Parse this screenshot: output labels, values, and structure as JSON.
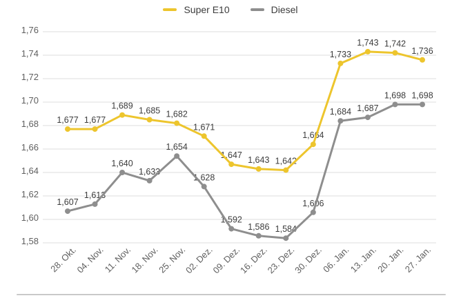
{
  "chart_data": {
    "type": "line",
    "x": [
      "28. Okt.",
      "04. Nov.",
      "11. Nov.",
      "18. Nov.",
      "25. Nov.",
      "02. Dez.",
      "09. Dez.",
      "16. Dez.",
      "23. Dez.",
      "30. Dez.",
      "06. Jan.",
      "13. Jan.",
      "20. Jan.",
      "27. Jan."
    ],
    "series": [
      {
        "name": "Super E10",
        "color": "#edc52d",
        "values": [
          1.677,
          1.677,
          1.689,
          1.685,
          1.682,
          1.671,
          1.647,
          1.643,
          1.642,
          1.664,
          1.733,
          1.743,
          1.742,
          1.736
        ],
        "labels": [
          "1,677",
          "1,677",
          "1,689",
          "1,685",
          "1,682",
          "1,671",
          "1,647",
          "1,643",
          "1,642",
          "1,664",
          "1,733",
          "1,743",
          "1,742",
          "1,736"
        ]
      },
      {
        "name": "Diesel",
        "color": "#8e8e8e",
        "values": [
          1.607,
          1.613,
          1.64,
          1.633,
          1.654,
          1.628,
          1.592,
          1.586,
          1.584,
          1.606,
          1.684,
          1.687,
          1.698,
          1.698
        ],
        "labels": [
          "1,607",
          "1,613",
          "1,640",
          "1,633",
          "1,654",
          "1,628",
          "1,592",
          "1,586",
          "1,584",
          "1,606",
          "1,684",
          "1,687",
          "1,698",
          "1,698"
        ]
      }
    ],
    "y_tick_labels": [
      "1,76",
      "1,74",
      "1,72",
      "1,70",
      "1,68",
      "1,66",
      "1,64",
      "1,62",
      "1,60",
      "1,58"
    ],
    "ylim": [
      1.58,
      1.76
    ],
    "grid": true,
    "legend_position": "top-center",
    "title": "",
    "xlabel": "",
    "ylabel": ""
  },
  "colors": {
    "gridline": "#dcdcdc",
    "axis_text": "#5f5f5f",
    "value_label_text": "#3c3c3c",
    "divider": "#c9c9c9"
  }
}
